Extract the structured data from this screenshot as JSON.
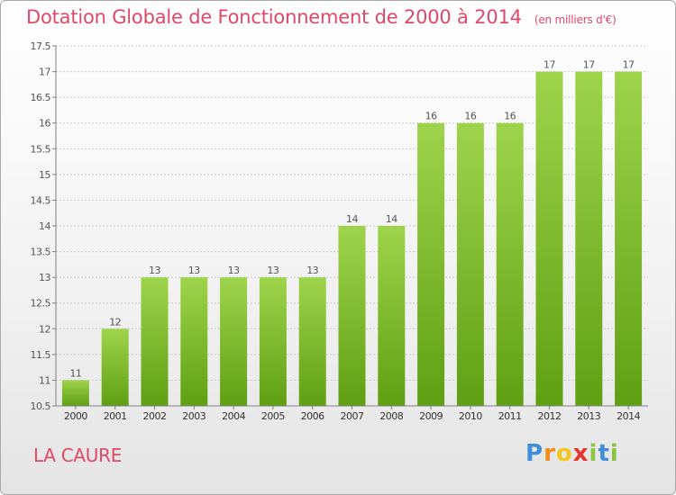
{
  "title": "Dotation Globale de Fonctionnement de 2000 à 2014",
  "unit": "(en milliers d'€)",
  "commune": "LA CAURE",
  "logo": {
    "letters": [
      "P",
      "r",
      "o",
      "x",
      "i",
      "t",
      "i"
    ],
    "colors": [
      "#3f8fd8",
      "#f28c1a",
      "#f2c61a",
      "#e8342a",
      "#8bc43f",
      "#3f8fd8",
      "#8bc43f"
    ]
  },
  "colors": {
    "title": "#e04868",
    "bar_light": "#9ed44b",
    "bar_dark": "#5f9f12",
    "grid": "#cccccc",
    "axis": "#808080",
    "text": "#555555"
  },
  "chart_data": {
    "type": "bar",
    "title": "Dotation Globale de Fonctionnement de 2000 à 2014",
    "ylabel": "(en milliers d'€)",
    "xlabel": "",
    "categories": [
      "2000",
      "2001",
      "2002",
      "2003",
      "2004",
      "2005",
      "2006",
      "2007",
      "2008",
      "2009",
      "2010",
      "2011",
      "2012",
      "2013",
      "2014"
    ],
    "values": [
      11,
      12,
      13,
      13,
      13,
      13,
      13,
      14,
      14,
      16,
      16,
      16,
      17,
      17,
      17
    ],
    "labels": [
      "11",
      "12",
      "13",
      "13",
      "13",
      "13",
      "13",
      "14",
      "14",
      "16",
      "16",
      "16",
      "17",
      "17",
      "17"
    ],
    "ylim": [
      10.5,
      17.5
    ],
    "yticks": [
      10.5,
      11,
      11.5,
      12,
      12.5,
      13,
      13.5,
      14,
      14.5,
      15,
      15.5,
      16,
      16.5,
      17,
      17.5
    ],
    "ytick_labels": [
      "10.5",
      "11",
      "11.5",
      "12",
      "12.5",
      "13",
      "13.5",
      "14",
      "14.5",
      "15",
      "15.5",
      "16",
      "16.5",
      "17",
      "17.5"
    ],
    "grid": true
  }
}
